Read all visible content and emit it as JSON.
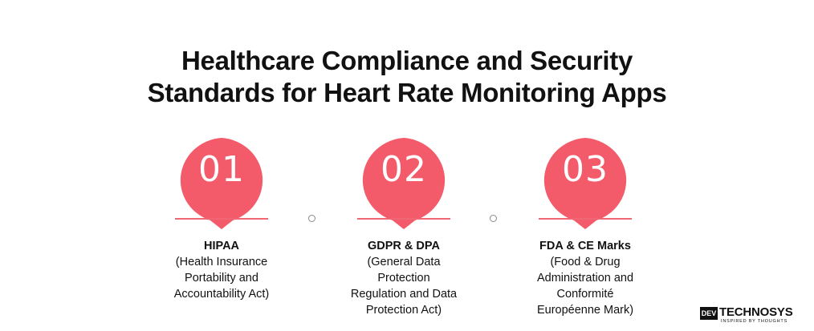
{
  "title": {
    "line1": "Healthcare Compliance and Security",
    "line2": "Standards for Heart Rate Monitoring Apps"
  },
  "steps": [
    {
      "number": "01",
      "heading": "HIPAA",
      "description": "(Health Insurance\nPortability and\nAccountability Act)"
    },
    {
      "number": "02",
      "heading": "GDPR & DPA",
      "description": "(General Data\nProtection\nRegulation and Data\nProtection Act)"
    },
    {
      "number": "03",
      "heading": "FDA & CE Marks",
      "description": "(Food & Drug\nAdministration and\nConformité\nEuropéenne Mark)"
    }
  ],
  "logo": {
    "mark": "DEV",
    "brand": "TECHNOSYS",
    "tagline": "INSPIRED BY THOUGHTS"
  },
  "colors": {
    "accent": "#f45b6a",
    "connector": "#8a8a8a",
    "text": "#111111"
  },
  "icons": {
    "bubble": "map-pin-speech-bubble",
    "connector": "ring-dot"
  }
}
